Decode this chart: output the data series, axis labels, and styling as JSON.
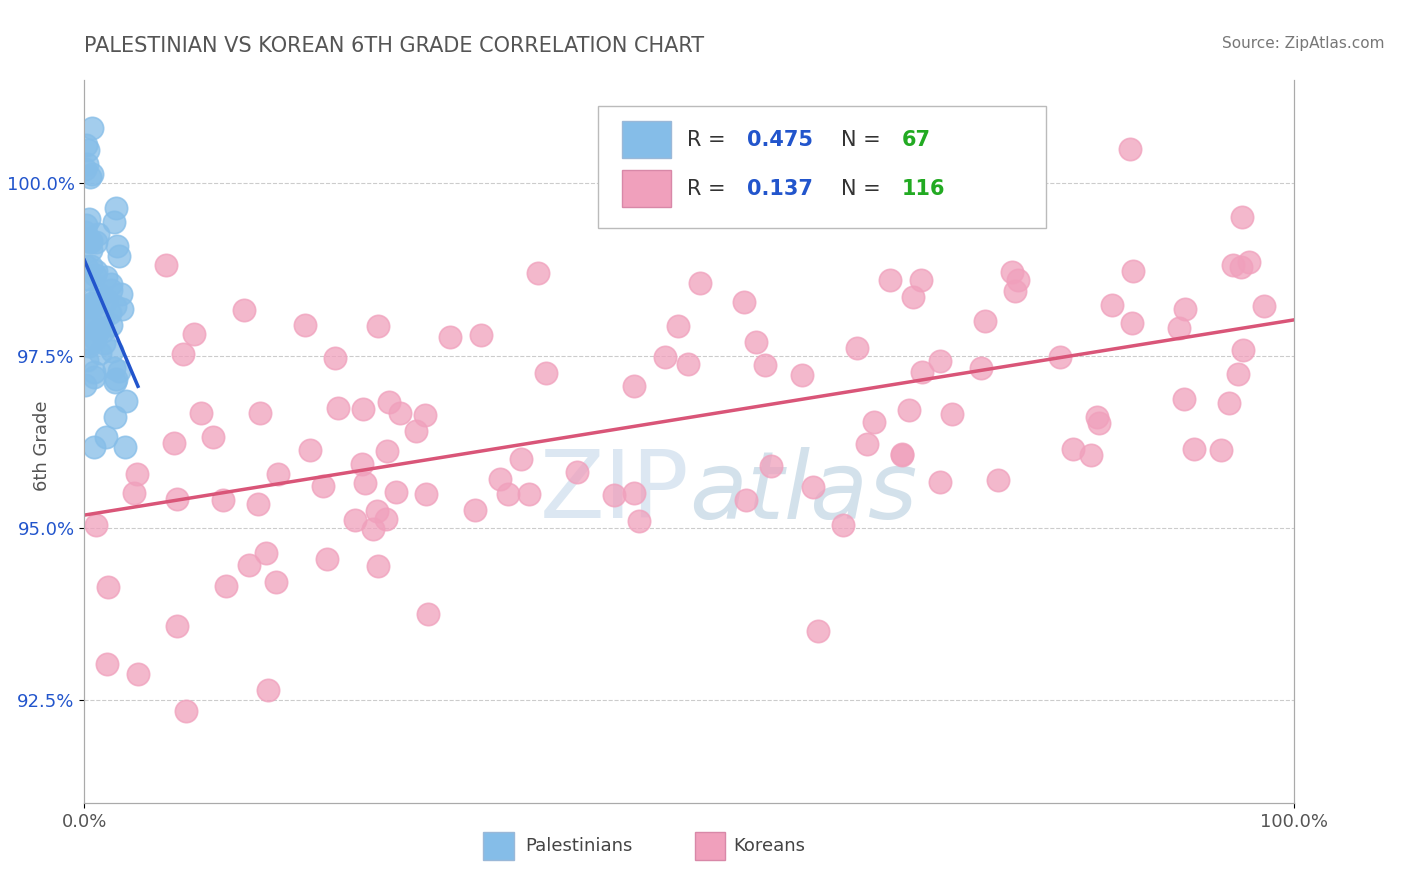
{
  "title": "PALESTINIAN VS KOREAN 6TH GRADE CORRELATION CHART",
  "source": "Source: ZipAtlas.com",
  "ylabel": "6th Grade",
  "y_ticks": [
    92.5,
    95.0,
    97.5,
    100.0
  ],
  "y_tick_labels": [
    "92.5%",
    "95.0%",
    "97.5%",
    "100.0%"
  ],
  "x_range": [
    0.0,
    100.0
  ],
  "y_range": [
    91.0,
    101.5
  ],
  "palestinian_color": "#85bde8",
  "korean_color": "#f0a0bc",
  "trend_blue": "#2255cc",
  "trend_pink": "#d95578",
  "R_pal": "0.475",
  "N_pal": "67",
  "R_kor": "0.137",
  "N_kor": "116",
  "R_color": "#2255cc",
  "N_color": "#22aa22",
  "watermark": "ZIPatlas",
  "background_color": "#ffffff",
  "grid_color": "#cccccc",
  "title_color": "#555555",
  "source_color": "#777777",
  "ytick_color": "#2255cc",
  "xtick_color": "#555555",
  "ylabel_color": "#555555"
}
